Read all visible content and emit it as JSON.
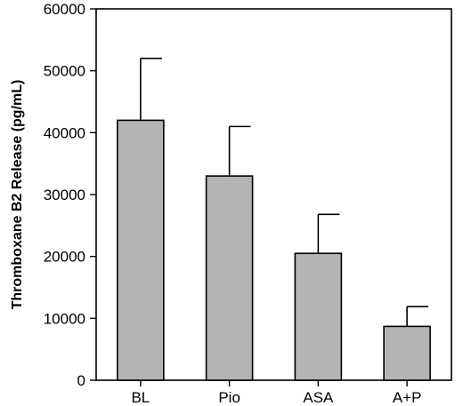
{
  "chart_data": {
    "type": "bar",
    "title": "",
    "xlabel": "",
    "ylabel": "Thromboxane B2 Release (pg/mL)",
    "ylim": [
      0,
      60000
    ],
    "yticks": [
      0,
      10000,
      20000,
      30000,
      40000,
      50000,
      60000
    ],
    "categories": [
      "BL",
      "Pio",
      "ASA",
      "A+P"
    ],
    "values": [
      42000,
      33000,
      20500,
      8700
    ],
    "error_upper": [
      10000,
      8000,
      6300,
      3200
    ],
    "bar_color": "#b4b4b4",
    "grid": false,
    "legend": "none"
  }
}
